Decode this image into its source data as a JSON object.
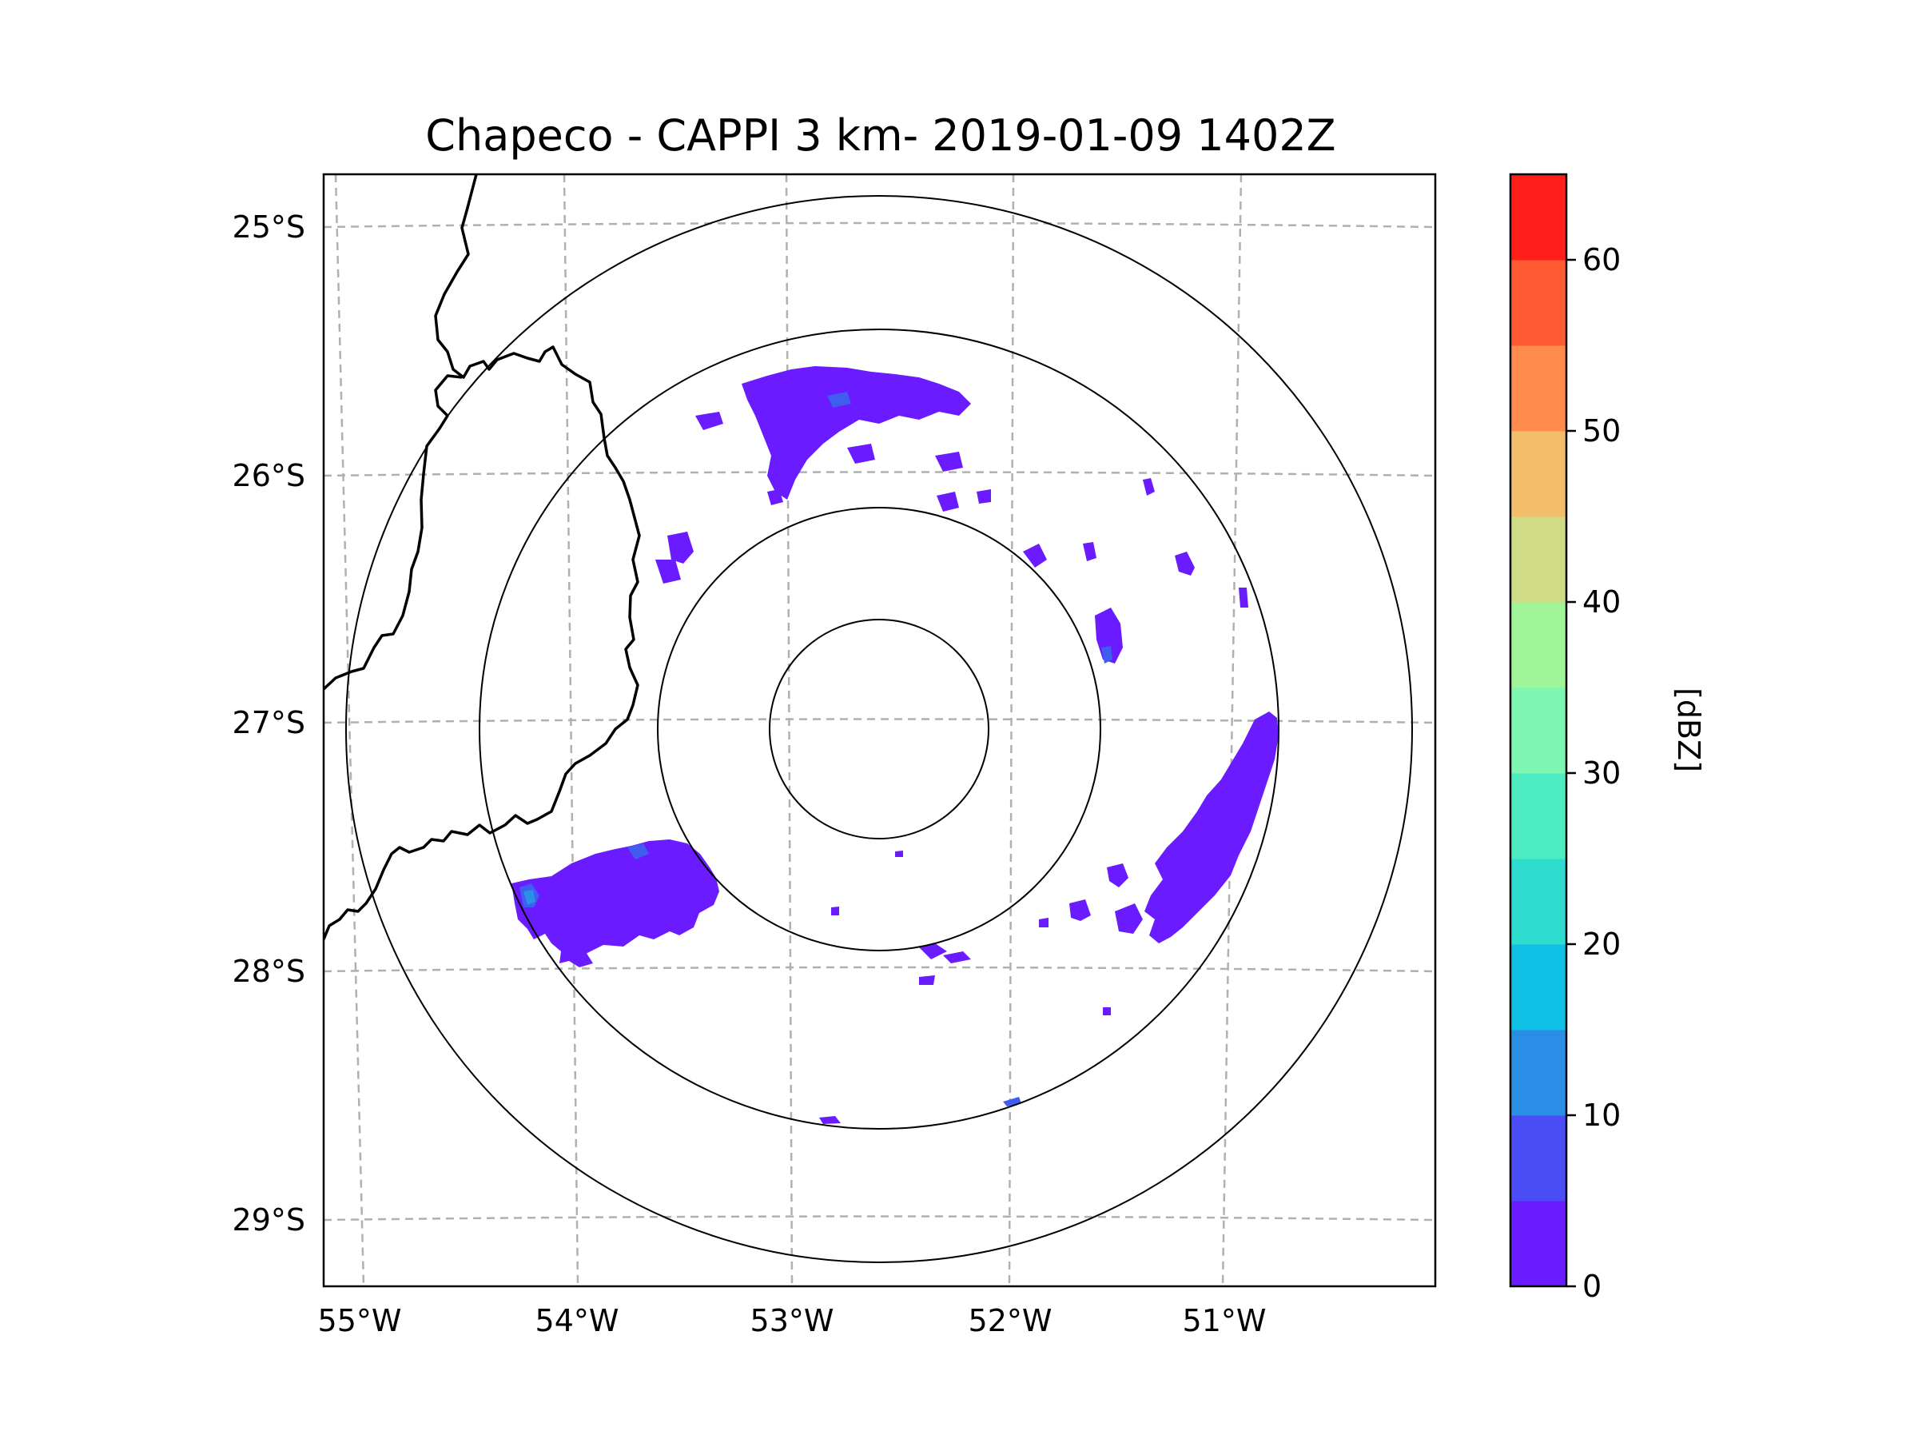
{
  "map": {
    "title": "Chapeco - CAPPI 3 km- 2019-01-09 1402Z",
    "radar_site": "Chapeco",
    "product": "CAPPI 3 km",
    "timestamp": "2019-01-09 1402Z",
    "lat_labels": [
      "25°S",
      "26°S",
      "27°S",
      "28°S",
      "29°S"
    ],
    "lon_labels": [
      "55°W",
      "54°W",
      "53°W",
      "52°W",
      "51°W"
    ],
    "range_rings": 4,
    "gridline_color": "#b0b0b0",
    "border_color": "#000000",
    "echo_colors": {
      "weak": "#6a1bff",
      "moderate": "#3f5df0",
      "light": "#2a8fe6"
    },
    "colorbar": {
      "label": "[dBZ]",
      "tick_labels": [
        "0",
        "10",
        "20",
        "30",
        "40",
        "50",
        "60"
      ],
      "range_dbz": [
        0,
        65
      ],
      "step_dbz": 5,
      "bins": [
        {
          "from": 0,
          "to": 5,
          "color": "#6a1bff"
        },
        {
          "from": 5,
          "to": 10,
          "color": "#4a4cf5"
        },
        {
          "from": 10,
          "to": 15,
          "color": "#2a8ee6"
        },
        {
          "from": 15,
          "to": 20,
          "color": "#0fc0e4"
        },
        {
          "from": 20,
          "to": 25,
          "color": "#2fdcd0"
        },
        {
          "from": 25,
          "to": 30,
          "color": "#4eecc1"
        },
        {
          "from": 30,
          "to": 35,
          "color": "#7ef5b0"
        },
        {
          "from": 35,
          "to": 40,
          "color": "#9ff598"
        },
        {
          "from": 40,
          "to": 45,
          "color": "#cfdc85"
        },
        {
          "from": 45,
          "to": 50,
          "color": "#f3be6c"
        },
        {
          "from": 50,
          "to": 55,
          "color": "#ff8c4c"
        },
        {
          "from": 55,
          "to": 60,
          "color": "#ff5a34"
        },
        {
          "from": 60,
          "to": 65,
          "color": "#ff1f1a"
        }
      ]
    }
  }
}
